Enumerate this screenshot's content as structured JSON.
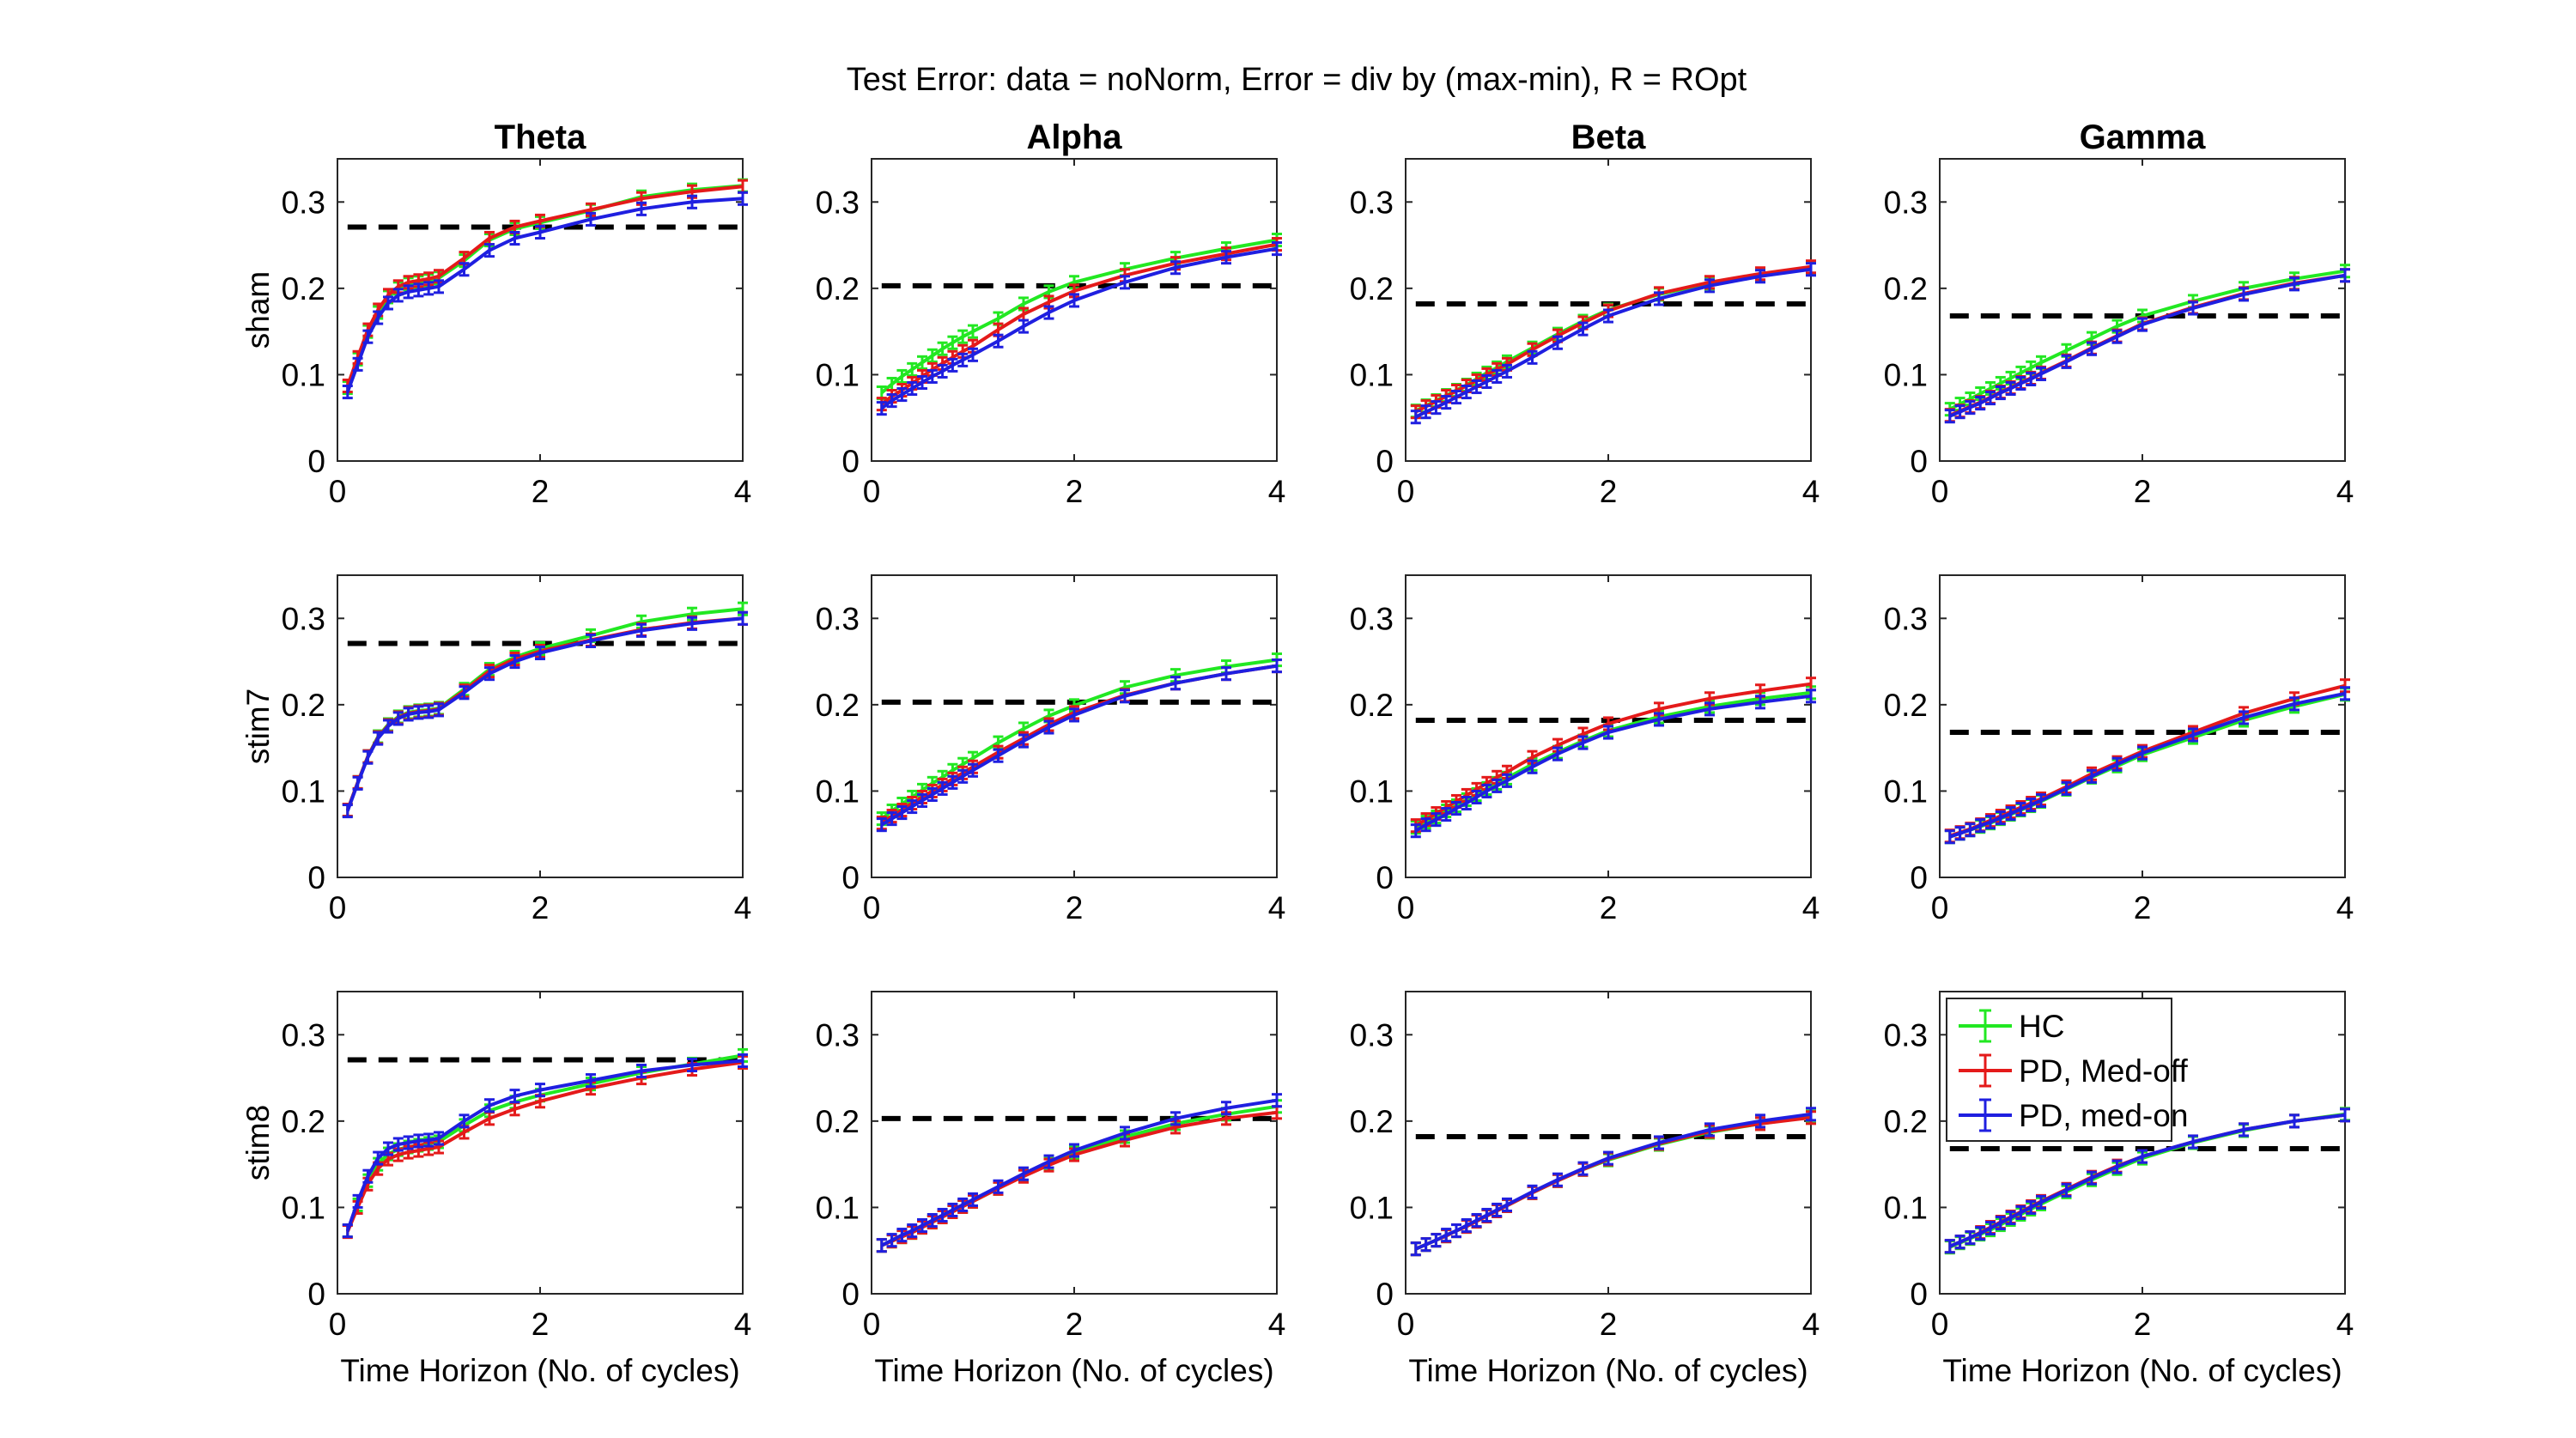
{
  "figure": {
    "suptitle": "Test Error: data = noNorm, Error = div by (max-min), R = ROpt"
  },
  "colors": {
    "HC": "#22e822",
    "PD_off": "#e41a1a",
    "PD_on": "#1f1fe0",
    "baseline": "#000000"
  },
  "legend": {
    "placement": "panel row 3, column 4, top-left",
    "entries": [
      "HC",
      "PD, Med-off",
      "PD, med-on"
    ]
  },
  "chart_data": {
    "type": "line",
    "subplots": "3 rows x 4 columns, shared axes",
    "column_titles": [
      "Theta",
      "Alpha",
      "Beta",
      "Gamma"
    ],
    "row_labels": [
      "sham",
      "stim7",
      "stim8"
    ],
    "xlabel": "Time Horizon (No. of cycles)",
    "xlim": [
      0,
      4
    ],
    "ylim": [
      0,
      0.35
    ],
    "xticks": [
      0,
      2,
      4
    ],
    "yticks": [
      0,
      0.1,
      0.2,
      0.3
    ],
    "x": [
      0.1,
      0.2,
      0.3,
      0.4,
      0.5,
      0.6,
      0.7,
      0.8,
      0.9,
      1.0,
      1.25,
      1.5,
      1.75,
      2.0,
      2.5,
      3.0,
      3.5,
      4.0
    ],
    "error_bar_halfwidth": 0.007,
    "baselines": {
      "Theta": 0.271,
      "Alpha": 0.203,
      "Beta": 0.182,
      "Gamma": 0.168
    },
    "series_names": [
      "HC",
      "PD, Med-off",
      "PD, med-on"
    ],
    "panels": {
      "sham": {
        "Theta": {
          "HC": [
            0.085,
            0.118,
            0.15,
            0.172,
            0.19,
            0.2,
            0.205,
            0.207,
            0.209,
            0.212,
            0.232,
            0.256,
            0.269,
            0.276,
            0.29,
            0.306,
            0.314,
            0.319
          ],
          "PD_off": [
            0.087,
            0.12,
            0.152,
            0.175,
            0.192,
            0.202,
            0.207,
            0.209,
            0.211,
            0.214,
            0.235,
            0.258,
            0.271,
            0.278,
            0.291,
            0.304,
            0.312,
            0.318
          ],
          "PD_on": [
            0.08,
            0.112,
            0.144,
            0.166,
            0.183,
            0.192,
            0.196,
            0.198,
            0.2,
            0.202,
            0.222,
            0.244,
            0.258,
            0.265,
            0.28,
            0.292,
            0.3,
            0.304
          ]
        },
        "Alpha": {
          "HC": [
            0.079,
            0.089,
            0.098,
            0.106,
            0.114,
            0.122,
            0.13,
            0.137,
            0.144,
            0.15,
            0.165,
            0.182,
            0.196,
            0.207,
            0.222,
            0.235,
            0.246,
            0.256
          ],
          "PD_off": [
            0.066,
            0.075,
            0.082,
            0.09,
            0.098,
            0.106,
            0.113,
            0.12,
            0.127,
            0.133,
            0.152,
            0.17,
            0.184,
            0.197,
            0.215,
            0.229,
            0.24,
            0.251
          ],
          "PD_on": [
            0.061,
            0.07,
            0.077,
            0.084,
            0.091,
            0.098,
            0.104,
            0.111,
            0.117,
            0.123,
            0.139,
            0.156,
            0.172,
            0.186,
            0.207,
            0.224,
            0.236,
            0.246
          ]
        },
        "Beta": {
          "HC": [
            0.058,
            0.064,
            0.07,
            0.076,
            0.082,
            0.088,
            0.095,
            0.102,
            0.108,
            0.115,
            0.131,
            0.147,
            0.162,
            0.175,
            0.193,
            0.206,
            0.216,
            0.224
          ],
          "PD_off": [
            0.057,
            0.063,
            0.069,
            0.075,
            0.081,
            0.087,
            0.093,
            0.1,
            0.106,
            0.112,
            0.129,
            0.145,
            0.16,
            0.174,
            0.194,
            0.207,
            0.217,
            0.225
          ],
          "PD_on": [
            0.051,
            0.057,
            0.062,
            0.068,
            0.074,
            0.08,
            0.086,
            0.092,
            0.098,
            0.104,
            0.12,
            0.137,
            0.153,
            0.168,
            0.188,
            0.203,
            0.214,
            0.222
          ]
        },
        "Gamma": {
          "HC": [
            0.06,
            0.066,
            0.072,
            0.078,
            0.084,
            0.09,
            0.096,
            0.102,
            0.108,
            0.114,
            0.128,
            0.142,
            0.156,
            0.168,
            0.185,
            0.2,
            0.211,
            0.22
          ],
          "PD_off": [
            0.053,
            0.058,
            0.063,
            0.068,
            0.074,
            0.08,
            0.085,
            0.091,
            0.096,
            0.102,
            0.116,
            0.131,
            0.145,
            0.159,
            0.178,
            0.194,
            0.206,
            0.215
          ],
          "PD_on": [
            0.052,
            0.057,
            0.062,
            0.067,
            0.073,
            0.079,
            0.084,
            0.09,
            0.095,
            0.101,
            0.115,
            0.13,
            0.144,
            0.158,
            0.177,
            0.193,
            0.205,
            0.215
          ]
        }
      },
      "stim7": {
        "Theta": {
          "HC": [
            0.078,
            0.11,
            0.14,
            0.163,
            0.177,
            0.186,
            0.191,
            0.193,
            0.194,
            0.196,
            0.218,
            0.241,
            0.255,
            0.265,
            0.28,
            0.296,
            0.305,
            0.311
          ],
          "PD_off": [
            0.078,
            0.11,
            0.14,
            0.162,
            0.176,
            0.185,
            0.19,
            0.192,
            0.193,
            0.195,
            0.216,
            0.239,
            0.253,
            0.262,
            0.275,
            0.287,
            0.295,
            0.3
          ],
          "PD_on": [
            0.077,
            0.109,
            0.139,
            0.161,
            0.175,
            0.184,
            0.189,
            0.191,
            0.192,
            0.194,
            0.214,
            0.236,
            0.25,
            0.26,
            0.274,
            0.286,
            0.294,
            0.3
          ]
        },
        "Alpha": {
          "HC": [
            0.068,
            0.077,
            0.085,
            0.093,
            0.101,
            0.109,
            0.116,
            0.124,
            0.131,
            0.138,
            0.156,
            0.172,
            0.187,
            0.199,
            0.22,
            0.234,
            0.244,
            0.252
          ],
          "PD_off": [
            0.063,
            0.071,
            0.078,
            0.086,
            0.093,
            0.1,
            0.107,
            0.114,
            0.121,
            0.128,
            0.145,
            0.161,
            0.177,
            0.191,
            0.211,
            0.225,
            0.236,
            0.245
          ],
          "PD_on": [
            0.061,
            0.068,
            0.075,
            0.082,
            0.089,
            0.096,
            0.103,
            0.11,
            0.117,
            0.124,
            0.141,
            0.158,
            0.174,
            0.188,
            0.21,
            0.225,
            0.236,
            0.245
          ]
        },
        "Beta": {
          "HC": [
            0.058,
            0.064,
            0.07,
            0.077,
            0.083,
            0.09,
            0.096,
            0.103,
            0.109,
            0.115,
            0.131,
            0.145,
            0.158,
            0.17,
            0.186,
            0.198,
            0.207,
            0.214
          ],
          "PD_off": [
            0.06,
            0.067,
            0.074,
            0.081,
            0.088,
            0.095,
            0.102,
            0.109,
            0.116,
            0.122,
            0.139,
            0.153,
            0.166,
            0.178,
            0.195,
            0.207,
            0.216,
            0.224
          ],
          "PD_on": [
            0.054,
            0.061,
            0.067,
            0.073,
            0.08,
            0.086,
            0.093,
            0.1,
            0.106,
            0.112,
            0.128,
            0.143,
            0.156,
            0.168,
            0.183,
            0.195,
            0.203,
            0.21
          ]
        },
        "Gamma": {
          "HC": [
            0.047,
            0.051,
            0.055,
            0.059,
            0.063,
            0.068,
            0.073,
            0.078,
            0.083,
            0.088,
            0.102,
            0.116,
            0.129,
            0.142,
            0.162,
            0.182,
            0.198,
            0.212
          ],
          "PD_off": [
            0.048,
            0.052,
            0.056,
            0.061,
            0.066,
            0.071,
            0.076,
            0.081,
            0.086,
            0.091,
            0.105,
            0.12,
            0.133,
            0.146,
            0.168,
            0.19,
            0.207,
            0.222
          ],
          "PD_on": [
            0.047,
            0.051,
            0.055,
            0.06,
            0.064,
            0.069,
            0.074,
            0.079,
            0.084,
            0.089,
            0.103,
            0.117,
            0.131,
            0.144,
            0.165,
            0.185,
            0.201,
            0.213
          ]
        }
      },
      "stim8": {
        "Theta": {
          "HC": [
            0.073,
            0.103,
            0.131,
            0.15,
            0.162,
            0.167,
            0.17,
            0.172,
            0.174,
            0.176,
            0.195,
            0.212,
            0.222,
            0.23,
            0.243,
            0.256,
            0.266,
            0.276
          ],
          "PD_off": [
            0.072,
            0.1,
            0.127,
            0.145,
            0.156,
            0.161,
            0.164,
            0.166,
            0.168,
            0.17,
            0.187,
            0.203,
            0.214,
            0.223,
            0.238,
            0.25,
            0.26,
            0.268
          ],
          "PD_on": [
            0.073,
            0.107,
            0.136,
            0.157,
            0.168,
            0.173,
            0.175,
            0.177,
            0.178,
            0.18,
            0.2,
            0.218,
            0.229,
            0.236,
            0.247,
            0.258,
            0.265,
            0.27
          ]
        },
        "Alpha": {
          "HC": [
            0.056,
            0.061,
            0.066,
            0.071,
            0.077,
            0.083,
            0.089,
            0.095,
            0.101,
            0.107,
            0.122,
            0.137,
            0.15,
            0.163,
            0.182,
            0.197,
            0.208,
            0.217
          ],
          "PD_off": [
            0.056,
            0.061,
            0.066,
            0.071,
            0.077,
            0.083,
            0.089,
            0.095,
            0.101,
            0.107,
            0.122,
            0.136,
            0.149,
            0.161,
            0.178,
            0.193,
            0.203,
            0.21
          ],
          "PD_on": [
            0.056,
            0.062,
            0.068,
            0.073,
            0.079,
            0.085,
            0.091,
            0.097,
            0.103,
            0.109,
            0.124,
            0.139,
            0.153,
            0.166,
            0.186,
            0.203,
            0.215,
            0.224
          ]
        },
        "Beta": {
          "HC": [
            0.052,
            0.057,
            0.062,
            0.067,
            0.073,
            0.078,
            0.084,
            0.09,
            0.096,
            0.102,
            0.117,
            0.131,
            0.144,
            0.155,
            0.173,
            0.187,
            0.197,
            0.205
          ],
          "PD_off": [
            0.052,
            0.057,
            0.062,
            0.067,
            0.073,
            0.078,
            0.084,
            0.09,
            0.096,
            0.102,
            0.117,
            0.131,
            0.144,
            0.156,
            0.174,
            0.188,
            0.197,
            0.204
          ],
          "PD_on": [
            0.052,
            0.057,
            0.062,
            0.068,
            0.073,
            0.079,
            0.085,
            0.091,
            0.097,
            0.103,
            0.118,
            0.132,
            0.145,
            0.157,
            0.175,
            0.19,
            0.2,
            0.208
          ]
        },
        "Gamma": {
          "HC": [
            0.054,
            0.059,
            0.064,
            0.069,
            0.074,
            0.08,
            0.086,
            0.092,
            0.098,
            0.104,
            0.118,
            0.132,
            0.145,
            0.157,
            0.175,
            0.189,
            0.2,
            0.208
          ],
          "PD_off": [
            0.055,
            0.06,
            0.065,
            0.071,
            0.077,
            0.083,
            0.089,
            0.095,
            0.101,
            0.107,
            0.121,
            0.135,
            0.148,
            0.159,
            0.176,
            0.19,
            0.2,
            0.207
          ],
          "PD_on": [
            0.055,
            0.06,
            0.065,
            0.07,
            0.076,
            0.082,
            0.088,
            0.094,
            0.1,
            0.106,
            0.12,
            0.134,
            0.147,
            0.159,
            0.176,
            0.19,
            0.2,
            0.207
          ]
        }
      }
    }
  }
}
